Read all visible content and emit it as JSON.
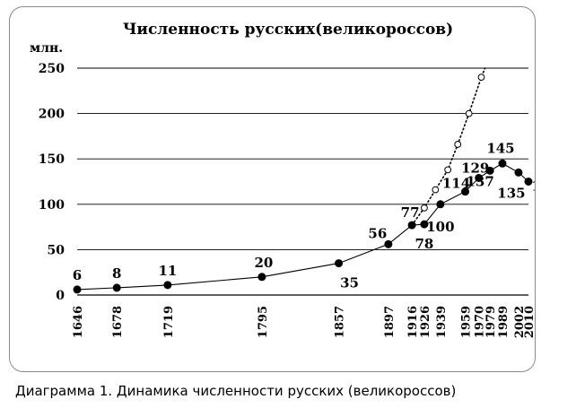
{
  "chart_data": {
    "type": "line",
    "title": "Численность русских(великороссов)",
    "ylabel": "млн.",
    "xlabel": "",
    "ylim": [
      0,
      250
    ],
    "yticks": [
      0,
      50,
      100,
      150,
      200,
      250
    ],
    "grid": true,
    "x_categories": [
      "1646",
      "1678",
      "1719",
      "1795",
      "1857",
      "1897",
      "1916",
      "1926",
      "1939",
      "1959",
      "1970",
      "1979",
      "1989",
      "2002",
      "2010"
    ],
    "series": [
      {
        "name": "",
        "style": "solid-line-filled-markers",
        "points": [
          {
            "x": 1646,
            "y": 6
          },
          {
            "x": 1678,
            "y": 8
          },
          {
            "x": 1719,
            "y": 11
          },
          {
            "x": 1795,
            "y": 20
          },
          {
            "x": 1857,
            "y": 35
          },
          {
            "x": 1897,
            "y": 56
          },
          {
            "x": 1916,
            "y": 77
          },
          {
            "x": 1926,
            "y": 78
          },
          {
            "x": 1939,
            "y": 100
          },
          {
            "x": 1959,
            "y": 114
          },
          {
            "x": 1970,
            "y": 129
          },
          {
            "x": 1979,
            "y": 137
          },
          {
            "x": 1989,
            "y": 145
          },
          {
            "x": 2002,
            "y": 135
          },
          {
            "x": 2010,
            "y": 125
          }
        ],
        "data_labels": [
          "6",
          "8",
          "11",
          "20",
          "35",
          "56",
          "77",
          "78",
          "100",
          "114",
          "129",
          "137",
          "145",
          "135",
          "125"
        ]
      },
      {
        "name": "",
        "style": "dotted-line-open-markers",
        "points": [
          {
            "x": 1916,
            "y": 77
          },
          {
            "x": 1926,
            "y": 96
          },
          {
            "x": 1935,
            "y": 116
          },
          {
            "x": 1945,
            "y": 138
          },
          {
            "x": 1953,
            "y": 166
          },
          {
            "x": 1962,
            "y": 200
          },
          {
            "x": 1972,
            "y": 240
          },
          {
            "x": 1975,
            "y": 250
          }
        ]
      }
    ]
  },
  "caption": "Диаграмма 1. Динамика численности русских (великороссов)",
  "colors": {
    "line": "#000000",
    "grid": "#000000",
    "frame": "#8a8a8a"
  }
}
